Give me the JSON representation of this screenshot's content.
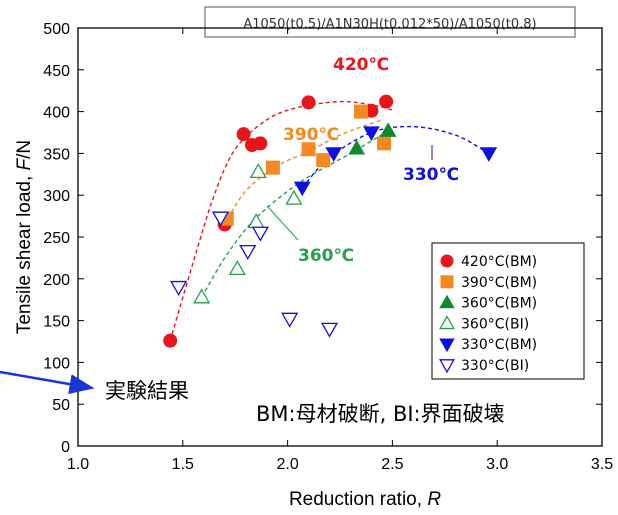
{
  "chart_data": {
    "type": "scatter",
    "header": "A1050(t0.5)/A1N30H(t0.012*50)/A1050(t0.8)",
    "xlabel": "Reduction ratio, ",
    "xlabel_var": "R",
    "ylabel": "Tensile shear load, ",
    "ylabel_var": "F",
    "ylabel_unit": "/N",
    "xlim": [
      1.0,
      3.5
    ],
    "ylim": [
      0,
      500
    ],
    "x_ticks": [
      "1.0",
      "1.5",
      "2.0",
      "2.5",
      "3.0",
      "3.5"
    ],
    "y_ticks": [
      "0",
      "50",
      "100",
      "150",
      "200",
      "250",
      "300",
      "350",
      "400",
      "450",
      "500"
    ],
    "grid": false,
    "legend_position": "bottom-right",
    "series": [
      {
        "name": "420°C(BM)",
        "marker": "circle",
        "filled": true,
        "color": "#e8161b",
        "points": [
          [
            1.44,
            126
          ],
          [
            1.7,
            265
          ],
          [
            1.79,
            373
          ],
          [
            1.83,
            360
          ],
          [
            1.87,
            362
          ],
          [
            2.1,
            411
          ],
          [
            2.4,
            401
          ],
          [
            2.47,
            412
          ]
        ]
      },
      {
        "name": "390°C(BM)",
        "marker": "square",
        "filled": true,
        "color": "#f28a21",
        "points": [
          [
            1.71,
            272
          ],
          [
            1.93,
            333
          ],
          [
            2.1,
            355
          ],
          [
            2.17,
            342
          ],
          [
            2.35,
            400
          ],
          [
            2.46,
            362
          ]
        ]
      },
      {
        "name": "360°C(BM)",
        "marker": "triangle-up",
        "filled": true,
        "color": "#108a2e",
        "points": [
          [
            2.33,
            356
          ],
          [
            2.48,
            377
          ]
        ]
      },
      {
        "name": "360°C(BI)",
        "marker": "triangle-up",
        "filled": false,
        "color": "#23a24a",
        "points": [
          [
            1.59,
            178
          ],
          [
            1.76,
            212
          ],
          [
            1.85,
            268
          ],
          [
            1.86,
            328
          ],
          [
            2.03,
            296
          ]
        ]
      },
      {
        "name": "330°C(BM)",
        "marker": "triangle-down",
        "filled": true,
        "color": "#1010e0",
        "points": [
          [
            2.07,
            309
          ],
          [
            2.22,
            350
          ],
          [
            2.4,
            375
          ],
          [
            2.96,
            350
          ]
        ]
      },
      {
        "name": "330°C(BI)",
        "marker": "triangle-down",
        "filled": false,
        "color": "#1010e0",
        "points": [
          [
            1.48,
            190
          ],
          [
            1.68,
            273
          ],
          [
            1.81,
            233
          ],
          [
            1.87,
            255
          ],
          [
            2.01,
            152
          ],
          [
            2.2,
            140
          ]
        ]
      }
    ],
    "trend_curves": [
      {
        "label": "420℃",
        "color": "#e8161b",
        "points": [
          [
            1.44,
            126
          ],
          [
            1.55,
            220
          ],
          [
            1.65,
            300
          ],
          [
            1.75,
            355
          ],
          [
            1.9,
            390
          ],
          [
            2.05,
            405
          ],
          [
            2.25,
            412
          ],
          [
            2.4,
            408
          ],
          [
            2.5,
            402
          ]
        ]
      },
      {
        "label": "390℃",
        "color": "#f28a21",
        "points": [
          [
            1.7,
            265
          ],
          [
            1.8,
            305
          ],
          [
            1.95,
            335
          ],
          [
            2.1,
            352
          ],
          [
            2.25,
            372
          ],
          [
            2.45,
            390
          ]
        ]
      },
      {
        "label": "360℃",
        "color": "#23a24a",
        "points": [
          [
            1.59,
            178
          ],
          [
            1.7,
            225
          ],
          [
            1.82,
            265
          ],
          [
            1.95,
            295
          ],
          [
            2.1,
            322
          ],
          [
            2.3,
            350
          ],
          [
            2.48,
            377
          ]
        ]
      },
      {
        "label": "330℃",
        "color": "#1010e0",
        "points": [
          [
            2.07,
            309
          ],
          [
            2.2,
            345
          ],
          [
            2.4,
            375
          ],
          [
            2.6,
            382
          ],
          [
            2.8,
            372
          ],
          [
            2.96,
            350
          ]
        ]
      }
    ],
    "annotations": {
      "label_420": "420℃",
      "label_390": "390℃",
      "label_360": "360℃",
      "label_330": "330℃",
      "experiment": "実験結果",
      "legend_note": "BM:母材破断, BI:界面破壊"
    }
  }
}
